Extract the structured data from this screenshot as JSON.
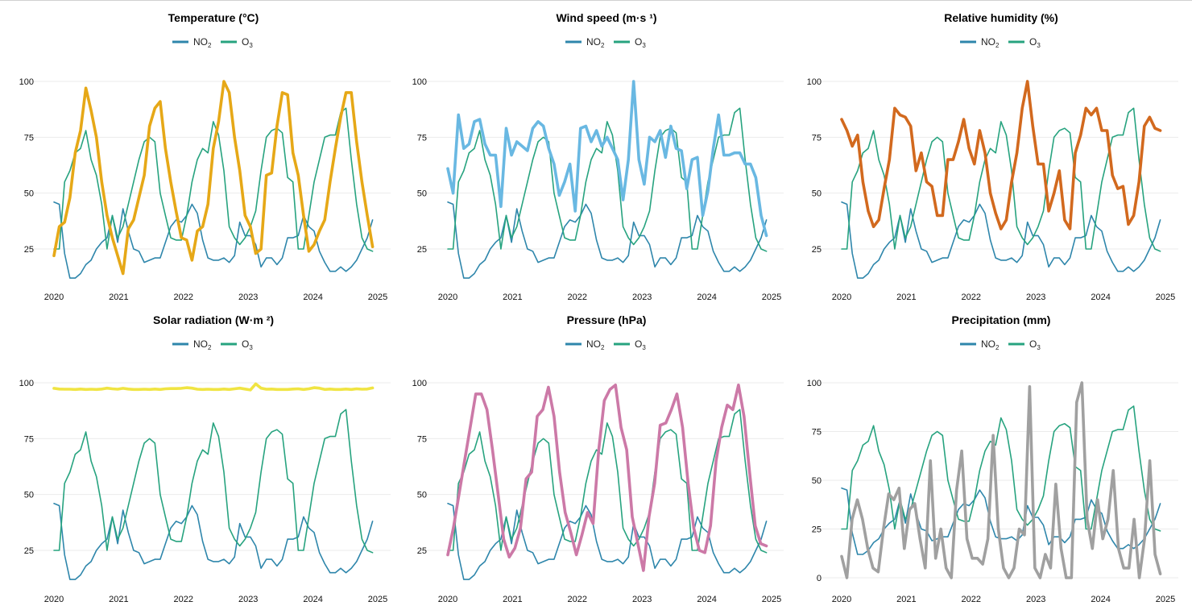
{
  "x_years": [
    "2020",
    "2021",
    "2022",
    "2023",
    "2024",
    "2025"
  ],
  "y_ticks": [
    25,
    50,
    75,
    100
  ],
  "legend": [
    {
      "main": "NO",
      "sub": "2",
      "color": "#2E86AB"
    },
    {
      "main": "O",
      "sub": "3",
      "color": "#27A37F"
    }
  ],
  "colors": {
    "no2": "#2E86AB",
    "o3": "#27A37F"
  },
  "chart_data": [
    {
      "type": "line",
      "title": "Temperature (°C)",
      "xlim": [
        2020,
        2025
      ],
      "ylim": [
        10,
        102
      ],
      "color": "#E6A817",
      "var_y": [
        22,
        35,
        37,
        48,
        68,
        78,
        97,
        87,
        75,
        55,
        40,
        30,
        22,
        14,
        34,
        38,
        48,
        58,
        80,
        88,
        91,
        70,
        55,
        42,
        30,
        29,
        20,
        33,
        35,
        45,
        70,
        82,
        100,
        95,
        75,
        60,
        40,
        35,
        23,
        25,
        58,
        59,
        80,
        95,
        94,
        68,
        58,
        40,
        24,
        27,
        33,
        38,
        55,
        70,
        84,
        95,
        95,
        73,
        55,
        40,
        26
      ]
    },
    {
      "type": "line",
      "title": "Wind speed (m·s ¹)",
      "xlim": [
        2020,
        2025
      ],
      "ylim": [
        10,
        102
      ],
      "color": "#69B8E2",
      "var_y": [
        61,
        50,
        85,
        70,
        72,
        82,
        83,
        72,
        67,
        67,
        44,
        79,
        67,
        73,
        71,
        69,
        79,
        82,
        80,
        70,
        63,
        49,
        55,
        63,
        42,
        79,
        80,
        73,
        78,
        71,
        75,
        70,
        65,
        47,
        65,
        100,
        65,
        54,
        75,
        73,
        78,
        66,
        80,
        70,
        69,
        52,
        65,
        66,
        40,
        51,
        70,
        85,
        67,
        67,
        68,
        68,
        63,
        63,
        57,
        40,
        31
      ]
    },
    {
      "type": "line",
      "title": "Relative humidity (%)",
      "xlim": [
        2020,
        2025
      ],
      "ylim": [
        10,
        102
      ],
      "color": "#D2691E",
      "var_y": [
        83,
        78,
        71,
        76,
        55,
        42,
        35,
        38,
        52,
        65,
        88,
        85,
        84,
        80,
        60,
        68,
        55,
        53,
        40,
        40,
        65,
        65,
        73,
        83,
        70,
        63,
        78,
        68,
        50,
        41,
        34,
        38,
        55,
        68,
        88,
        100,
        80,
        63,
        63,
        42,
        50,
        60,
        38,
        34,
        68,
        76,
        88,
        85,
        88,
        78,
        78,
        58,
        52,
        53,
        36,
        40,
        55,
        80,
        84,
        79,
        78
      ]
    },
    {
      "type": "line",
      "title": "Solar radiation (W·m ²)",
      "xlim": [
        2020,
        2025
      ],
      "ylim": [
        10,
        102
      ],
      "color": "#F0E442",
      "var_y": [
        97.5,
        97.2,
        97.1,
        97.1,
        97.0,
        97.2,
        97.0,
        97.1,
        97.0,
        97.2,
        97.6,
        97.3,
        97.1,
        97.5,
        97.2,
        97.0,
        97.0,
        97.1,
        97.0,
        97.2,
        97.0,
        97.3,
        97.4,
        97.4,
        97.5,
        97.8,
        97.6,
        97.1,
        97.0,
        97.1,
        97.0,
        97.0,
        97.2,
        97.0,
        97.3,
        97.6,
        97.2,
        96.8,
        99.5,
        97.6,
        97.1,
        97.2,
        97.0,
        97.0,
        97.0,
        97.2,
        97.3,
        97.0,
        97.3,
        97.8,
        97.6,
        97.0,
        97.2,
        97.0,
        97.0,
        97.2,
        97.0,
        97.3,
        97.1,
        97.2,
        97.7
      ]
    },
    {
      "type": "line",
      "title": "Pressure (hPa)",
      "xlim": [
        2020,
        2025
      ],
      "ylim": [
        10,
        102
      ],
      "color": "#CC79A7",
      "var_y": [
        23,
        35,
        50,
        65,
        80,
        95,
        95,
        88,
        70,
        50,
        30,
        22,
        26,
        35,
        57,
        60,
        85,
        88,
        98,
        85,
        60,
        42,
        33,
        23,
        32,
        42,
        37,
        70,
        92,
        97,
        99,
        80,
        70,
        40,
        28,
        16,
        40,
        55,
        81,
        82,
        88,
        95,
        80,
        55,
        35,
        25,
        24,
        36,
        65,
        80,
        90,
        88,
        99,
        85,
        60,
        36,
        28,
        27
      ]
    },
    {
      "type": "line",
      "title": "Precipitation (mm)",
      "xlim": [
        2020,
        2025
      ],
      "ylim": [
        -3,
        102
      ],
      "color": "#A0A0A0",
      "var_y": [
        11,
        0,
        30,
        40,
        30,
        15,
        5,
        3,
        25,
        43,
        40,
        46,
        15,
        35,
        38,
        20,
        5,
        60,
        10,
        25,
        5,
        0,
        45,
        65,
        20,
        10,
        10,
        7,
        20,
        73,
        25,
        5,
        0,
        5,
        25,
        22,
        98,
        5,
        0,
        12,
        5,
        48,
        15,
        0,
        0,
        90,
        100,
        30,
        15,
        40,
        20,
        30,
        55,
        15,
        5,
        5,
        30,
        0,
        20,
        60,
        12,
        2
      ]
    }
  ],
  "series": {
    "no2_y": [
      46,
      45,
      23,
      12,
      12,
      14,
      18,
      20,
      25,
      28,
      30,
      40,
      28,
      43,
      33,
      25,
      24,
      19,
      20,
      21,
      21,
      28,
      35,
      38,
      37,
      40,
      45,
      41,
      29,
      21,
      20,
      20,
      21,
      19,
      22,
      37,
      31,
      31,
      27,
      17,
      21,
      21,
      18,
      21,
      30,
      30,
      31,
      40,
      35,
      33,
      24,
      19,
      15,
      15,
      17,
      15,
      17,
      20,
      25,
      30,
      38
    ],
    "o3_y": [
      25,
      25,
      55,
      60,
      68,
      70,
      78,
      65,
      58,
      45,
      25,
      40,
      30,
      35,
      45,
      55,
      65,
      73,
      75,
      73,
      50,
      40,
      30,
      29,
      29,
      40,
      55,
      65,
      70,
      68,
      82,
      76,
      60,
      35,
      30,
      27,
      30,
      35,
      42,
      60,
      75,
      78,
      79,
      77,
      57,
      55,
      25,
      25,
      40,
      55,
      65,
      75,
      76,
      76,
      86,
      88,
      65,
      45,
      30,
      25,
      24
    ]
  }
}
